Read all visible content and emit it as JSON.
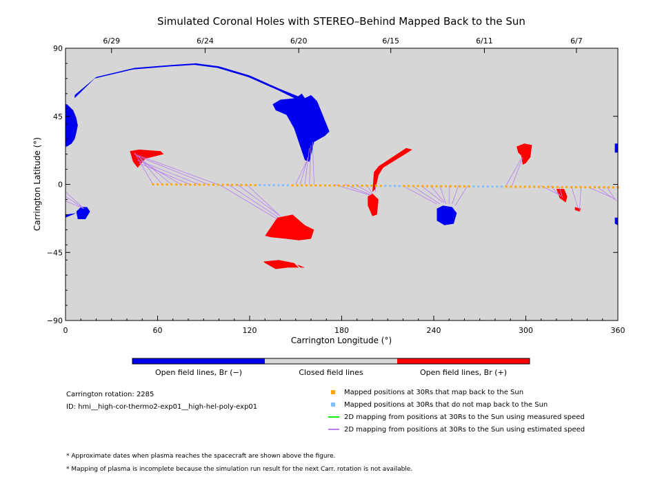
{
  "chart_data": {
    "type": "scatter",
    "title": "Simulated Coronal Holes with STEREO–Behind Mapped Back to the Sun",
    "xlabel": "Carrington Longitude (°)",
    "ylabel": "Carrington Latitude (°)",
    "xlim": [
      0,
      360
    ],
    "ylim": [
      -90,
      90
    ],
    "x_ticks": [
      "0",
      "60",
      "120",
      "180",
      "240",
      "300",
      "360"
    ],
    "y_ticks": [
      "90",
      "45",
      "0",
      "−45",
      "−90"
    ],
    "top_axis_dates": [
      {
        "label": "6/29",
        "lon": 30
      },
      {
        "label": "6/24",
        "lon": 91
      },
      {
        "label": "6/20",
        "lon": 152
      },
      {
        "label": "6/15",
        "lon": 212
      },
      {
        "label": "6/11",
        "lon": 273
      },
      {
        "label": "6/7",
        "lon": 333
      }
    ],
    "colorbar": [
      {
        "label": "Open field lines, Br (−)",
        "color": "#0000ee"
      },
      {
        "label": "Closed field lines",
        "color": "#d6d6d6"
      },
      {
        "label": "Open field lines, Br (+)",
        "color": "#ff0000"
      }
    ],
    "mapped_range": {
      "lon_start": 57,
      "lon_end": 360,
      "lat_start": 0,
      "lat_end": -2
    },
    "unmapped_lon_ranges": [
      [
        126,
        146
      ],
      [
        207,
        220
      ],
      [
        264,
        286
      ]
    ],
    "mapping_lines": [
      {
        "from": [
          57,
          0
        ],
        "to": [
          45,
          21
        ]
      },
      {
        "from": [
          63,
          0
        ],
        "to": [
          47,
          19
        ]
      },
      {
        "from": [
          69,
          0
        ],
        "to": [
          49,
          17
        ]
      },
      {
        "from": [
          75,
          0
        ],
        "to": [
          50,
          15
        ]
      },
      {
        "from": [
          81,
          0
        ],
        "to": [
          48,
          14
        ]
      },
      {
        "from": [
          87,
          0
        ],
        "to": [
          47,
          16
        ]
      },
      {
        "from": [
          93,
          0
        ],
        "to": [
          46,
          19
        ]
      },
      {
        "from": [
          99,
          0
        ],
        "to": [
          45,
          20
        ]
      },
      {
        "from": [
          100,
          0
        ],
        "to": [
          138,
          -23
        ]
      },
      {
        "from": [
          106,
          0
        ],
        "to": [
          139,
          -22
        ]
      },
      {
        "from": [
          112,
          0
        ],
        "to": [
          140,
          -21
        ]
      },
      {
        "from": [
          118,
          0
        ],
        "to": [
          140,
          -21
        ]
      },
      {
        "from": [
          150,
          0
        ],
        "to": [
          157,
          15
        ]
      },
      {
        "from": [
          153,
          0
        ],
        "to": [
          158,
          18
        ]
      },
      {
        "from": [
          156,
          0
        ],
        "to": [
          159,
          24
        ]
      },
      {
        "from": [
          159,
          0
        ],
        "to": [
          160,
          26
        ]
      },
      {
        "from": [
          162,
          0
        ],
        "to": [
          161,
          28
        ]
      },
      {
        "from": [
          175,
          0
        ],
        "to": [
          198,
          -7
        ]
      },
      {
        "from": [
          182,
          0
        ],
        "to": [
          199,
          -7
        ]
      },
      {
        "from": [
          189,
          0
        ],
        "to": [
          199,
          -6
        ]
      },
      {
        "from": [
          196,
          0
        ],
        "to": [
          200,
          -6
        ]
      },
      {
        "from": [
          202,
          0
        ],
        "to": [
          202,
          -5
        ]
      },
      {
        "from": [
          220,
          -1
        ],
        "to": [
          242,
          -13
        ]
      },
      {
        "from": [
          226,
          -1
        ],
        "to": [
          244,
          -13
        ]
      },
      {
        "from": [
          232,
          -1
        ],
        "to": [
          246,
          -12
        ]
      },
      {
        "from": [
          238,
          -1
        ],
        "to": [
          247,
          -12
        ]
      },
      {
        "from": [
          244,
          -1
        ],
        "to": [
          248,
          -13
        ]
      },
      {
        "from": [
          250,
          -1
        ],
        "to": [
          250,
          -13
        ]
      },
      {
        "from": [
          256,
          -1
        ],
        "to": [
          252,
          -13
        ]
      },
      {
        "from": [
          262,
          -1
        ],
        "to": [
          254,
          -14
        ]
      },
      {
        "from": [
          287,
          -1
        ],
        "to": [
          297,
          17
        ]
      },
      {
        "from": [
          291,
          -1
        ],
        "to": [
          298,
          18
        ]
      },
      {
        "from": [
          310,
          -1
        ],
        "to": [
          322,
          -7
        ]
      },
      {
        "from": [
          316,
          -1
        ],
        "to": [
          323,
          -8
        ]
      },
      {
        "from": [
          322,
          -2
        ],
        "to": [
          324,
          -9
        ]
      },
      {
        "from": [
          330,
          -2
        ],
        "to": [
          334,
          -16
        ]
      },
      {
        "from": [
          336,
          -2
        ],
        "to": [
          335,
          -17
        ]
      },
      {
        "from": [
          341,
          -2
        ],
        "to": [
          357,
          -9
        ]
      },
      {
        "from": [
          347,
          -2
        ],
        "to": [
          358,
          -10
        ]
      },
      {
        "from": [
          353,
          -2
        ],
        "to": [
          359,
          -11
        ]
      },
      {
        "from": [
          0,
          -5
        ],
        "to": [
          11,
          -15
        ]
      },
      {
        "from": [
          0,
          -8
        ],
        "to": [
          12,
          -16
        ]
      },
      {
        "from": [
          0,
          -11
        ],
        "to": [
          12,
          -16
        ]
      }
    ],
    "regions": [
      {
        "polarity": "negative",
        "color": "#0000ee",
        "points": [
          [
            156,
            57
          ],
          [
            154,
            60
          ],
          [
            150,
            57
          ],
          [
            140,
            56
          ],
          [
            135,
            53
          ],
          [
            137,
            49
          ],
          [
            144,
            46
          ],
          [
            149,
            37
          ],
          [
            153,
            25
          ],
          [
            156,
            16
          ],
          [
            159,
            15
          ],
          [
            162,
            28
          ],
          [
            169,
            32
          ],
          [
            172,
            35
          ],
          [
            164,
            55
          ],
          [
            160,
            59
          ]
        ]
      },
      {
        "polarity": "negative",
        "color": "#0000ee",
        "points": [
          [
            6,
            59
          ],
          [
            20,
            71
          ],
          [
            45,
            77
          ],
          [
            70,
            79
          ],
          [
            85,
            80
          ],
          [
            100,
            78
          ],
          [
            120,
            72
          ],
          [
            140,
            63
          ],
          [
            157,
            56
          ],
          [
            155,
            54
          ],
          [
            139,
            62
          ],
          [
            119,
            71
          ],
          [
            99,
            77
          ],
          [
            84,
            79
          ],
          [
            69,
            78
          ],
          [
            44,
            76
          ],
          [
            19,
            70
          ],
          [
            6,
            57
          ]
        ]
      },
      {
        "polarity": "negative",
        "color": "#0000ee",
        "points": [
          [
            1,
            53
          ],
          [
            5,
            49
          ],
          [
            7,
            44
          ],
          [
            8,
            39
          ],
          [
            7,
            34
          ],
          [
            6,
            30
          ],
          [
            4,
            27
          ],
          [
            1,
            25
          ],
          [
            0,
            25
          ],
          [
            0,
            53
          ]
        ]
      },
      {
        "polarity": "negative",
        "color": "#0000ee",
        "points": [
          [
            7,
            -18
          ],
          [
            10,
            -15
          ],
          [
            14,
            -15
          ],
          [
            16,
            -18
          ],
          [
            13,
            -23
          ],
          [
            8,
            -23
          ]
        ]
      },
      {
        "polarity": "negative",
        "color": "#0000ee",
        "points": [
          [
            0,
            -20
          ],
          [
            7,
            -19
          ],
          [
            0,
            -22
          ]
        ]
      },
      {
        "polarity": "negative",
        "color": "#0000ee",
        "points": [
          [
            242,
            -16
          ],
          [
            246,
            -14
          ],
          [
            252,
            -15
          ],
          [
            255,
            -19
          ],
          [
            253,
            -26
          ],
          [
            247,
            -27
          ],
          [
            242,
            -24
          ]
        ]
      },
      {
        "polarity": "negative",
        "color": "#0000ee",
        "points": [
          [
            358,
            27
          ],
          [
            360,
            27
          ],
          [
            360,
            21
          ],
          [
            358,
            21
          ]
        ]
      },
      {
        "polarity": "negative",
        "color": "#0000ee",
        "points": [
          [
            358,
            -22
          ],
          [
            360,
            -22
          ],
          [
            360,
            -27
          ],
          [
            358,
            -26
          ]
        ]
      },
      {
        "polarity": "positive",
        "color": "#ff0000",
        "points": [
          [
            42,
            22
          ],
          [
            48,
            23
          ],
          [
            62,
            22
          ],
          [
            64,
            20
          ],
          [
            52,
            17
          ],
          [
            47,
            11
          ],
          [
            44,
            15
          ]
        ]
      },
      {
        "polarity": "positive",
        "color": "#ff0000",
        "points": [
          [
            130,
            -34
          ],
          [
            138,
            -22
          ],
          [
            148,
            -20
          ],
          [
            156,
            -27
          ],
          [
            162,
            -30
          ],
          [
            160,
            -36
          ],
          [
            152,
            -37
          ],
          [
            144,
            -36
          ],
          [
            134,
            -35
          ]
        ]
      },
      {
        "polarity": "positive",
        "color": "#ff0000",
        "points": [
          [
            129,
            -51
          ],
          [
            139,
            -50
          ],
          [
            149,
            -52
          ],
          [
            152,
            -55
          ],
          [
            145,
            -55
          ],
          [
            137,
            -56
          ],
          [
            130,
            -52
          ]
        ]
      },
      {
        "polarity": "positive",
        "color": "#ff0000",
        "points": [
          [
            151,
            -53
          ],
          [
            156,
            -55
          ],
          [
            153,
            -55
          ]
        ]
      },
      {
        "polarity": "positive",
        "color": "#ff0000",
        "points": [
          [
            197,
            -8
          ],
          [
            200,
            -6
          ],
          [
            204,
            -10
          ],
          [
            203,
            -20
          ],
          [
            200,
            -21
          ],
          [
            197,
            -14
          ]
        ]
      },
      {
        "polarity": "positive",
        "color": "#ff0000",
        "points": [
          [
            200,
            -5
          ],
          [
            201,
            8
          ],
          [
            204,
            12
          ],
          [
            222,
            24
          ],
          [
            226,
            23
          ],
          [
            223,
            21
          ],
          [
            207,
            11
          ],
          [
            204,
            6
          ],
          [
            202,
            -3
          ]
        ]
      },
      {
        "polarity": "positive",
        "color": "#ff0000",
        "points": [
          [
            294,
            25
          ],
          [
            299,
            27
          ],
          [
            304,
            26
          ],
          [
            303,
            18
          ],
          [
            300,
            14
          ],
          [
            298,
            13
          ],
          [
            297,
            19
          ],
          [
            295,
            21
          ]
        ]
      },
      {
        "polarity": "positive",
        "color": "#ff0000",
        "points": [
          [
            320,
            -3
          ],
          [
            325,
            -3
          ],
          [
            327,
            -8
          ],
          [
            326,
            -12
          ],
          [
            322,
            -9
          ]
        ]
      },
      {
        "polarity": "positive",
        "color": "#ff0000",
        "points": [
          [
            332,
            -15
          ],
          [
            336,
            -16
          ],
          [
            335,
            -18
          ],
          [
            332,
            -17
          ]
        ]
      }
    ]
  },
  "info": {
    "carrington_rotation": "Carrington rotation: 2285",
    "run_id": "ID: hmi__high-cor-thermo2-exp01__high-hel-poly-exp01"
  },
  "legend": [
    {
      "label": "Mapped positions at 30Rs that map back to the Sun",
      "color": "#ffa500",
      "kind": "square"
    },
    {
      "label": "Mapped positions at 30Rs that do not map back to the Sun",
      "color": "#7fbfff",
      "kind": "square"
    },
    {
      "label": "2D mapping from positions at 30Rs to the Sun using measured speed",
      "color": "#00ee00",
      "kind": "line"
    },
    {
      "label": "2D mapping from positions at 30Rs to the Sun using estimated speed",
      "color": "#b77cf2",
      "kind": "line"
    }
  ],
  "notes": [
    "* Approximate dates when plasma reaches the spacecraft are shown above the figure.",
    "* Mapping of plasma is incomplete because the simulation run result for the next Carr. rotation is not available."
  ],
  "colors": {
    "background": "#d6d6d6",
    "mapped": "#ffa500",
    "unmapped": "#7fbfff",
    "estimated_line": "#b77cf2"
  }
}
